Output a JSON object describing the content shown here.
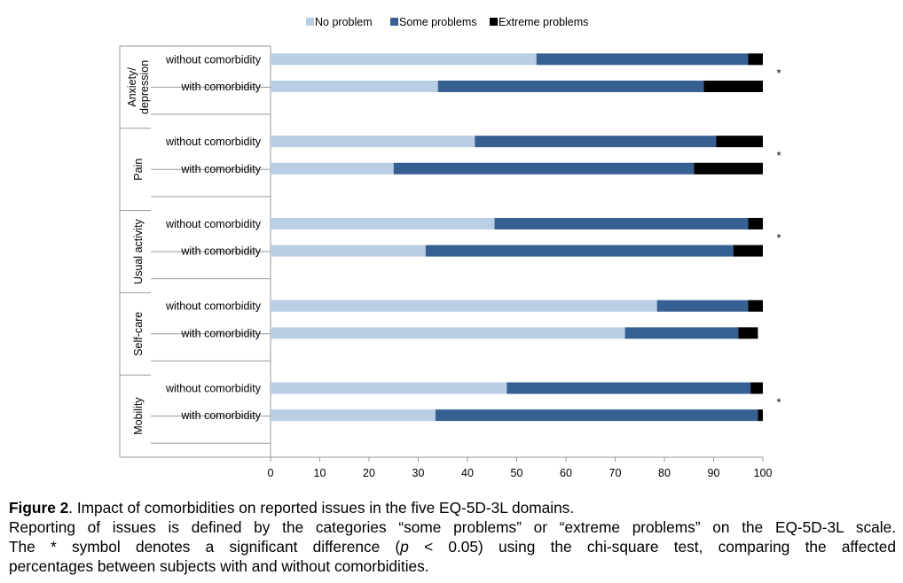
{
  "chart_data": {
    "type": "bar",
    "stacked": true,
    "orientation": "horizontal",
    "legend": {
      "position": "top",
      "items": [
        {
          "label": "No problem",
          "color": "#b9cde5"
        },
        {
          "label": "Some problems",
          "color": "#376092"
        },
        {
          "label": "Extreme problems",
          "color": "#000000"
        }
      ]
    },
    "xlim": [
      0,
      100
    ],
    "xticks": [
      "0",
      "10",
      "20",
      "30",
      "40",
      "50",
      "60",
      "70",
      "80",
      "90",
      "100"
    ],
    "groups": [
      {
        "domain": "Anxiety/ depression",
        "domain_lines": [
          "Anxiety/",
          "depression"
        ],
        "significant": "*",
        "rows": [
          {
            "label": "without comorbidity",
            "values": [
              54,
              43,
              3
            ]
          },
          {
            "label": "with comorbidity",
            "values": [
              34,
              54,
              12
            ]
          }
        ]
      },
      {
        "domain": "Pain",
        "domain_lines": [
          "Pain"
        ],
        "significant": "*",
        "rows": [
          {
            "label": "without comorbidity",
            "values": [
              41.5,
              49,
              9.5
            ]
          },
          {
            "label": "with comorbidity",
            "values": [
              25,
              61,
              14
            ]
          }
        ]
      },
      {
        "domain": "Usual activity",
        "domain_lines": [
          "Usual activity"
        ],
        "significant": "*",
        "rows": [
          {
            "label": "without comorbidity",
            "values": [
              45.5,
              51.5,
              3
            ]
          },
          {
            "label": "with comorbidity",
            "values": [
              31.5,
              62.5,
              6
            ]
          }
        ]
      },
      {
        "domain": "Self-care",
        "domain_lines": [
          "Self-care"
        ],
        "significant": "",
        "rows": [
          {
            "label": "without comorbidity",
            "values": [
              78.5,
              18.5,
              3
            ]
          },
          {
            "label": "with comorbidity",
            "values": [
              72,
              23,
              4
            ]
          }
        ]
      },
      {
        "domain": "Mobility",
        "domain_lines": [
          "Mobility"
        ],
        "significant": "*",
        "rows": [
          {
            "label": "without comorbidity",
            "values": [
              48,
              49.5,
              2.5
            ]
          },
          {
            "label": "with comorbidity",
            "values": [
              33.5,
              65.5,
              1
            ]
          }
        ]
      }
    ]
  },
  "caption": {
    "figure_label": "Figure 2",
    "title_rest": ". Impact of comorbidities on reported issues in the five EQ-5D-3L domains.",
    "line2": "Reporting of issues is defined by the categories “some problems” or “extreme problems” on the EQ-5D-3L scale.",
    "line3_before_p": "The * symbol denotes a significant difference (",
    "p_symbol": "p",
    "line3_after_p": " < 0.05) using the chi-square test, comparing the affected",
    "line4": "percentages between subjects with and without comorbidities."
  }
}
